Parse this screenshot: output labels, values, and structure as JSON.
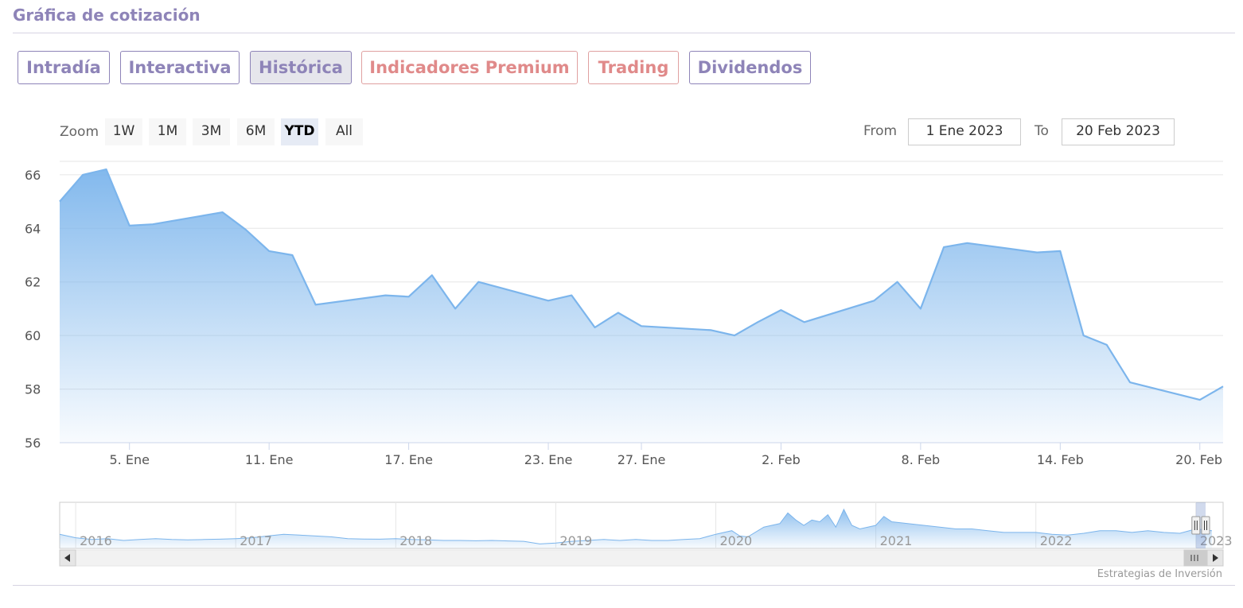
{
  "header": {
    "title": "Gráfica de cotización"
  },
  "tabs": [
    {
      "label": "Intradía",
      "active": false,
      "premium": false
    },
    {
      "label": "Interactiva",
      "active": false,
      "premium": false
    },
    {
      "label": "Histórica",
      "active": true,
      "premium": false
    },
    {
      "label": "Indicadores Premium",
      "active": false,
      "premium": true
    },
    {
      "label": "Trading",
      "active": false,
      "premium": true
    },
    {
      "label": "Dividendos",
      "active": false,
      "premium": false
    }
  ],
  "zoom": {
    "label": "Zoom",
    "buttons": [
      "1W",
      "1M",
      "3M",
      "6M",
      "YTD",
      "All"
    ],
    "selected": "YTD"
  },
  "range": {
    "from_label": "From",
    "from_value": "1 Ene 2023",
    "to_label": "To",
    "to_value": "20 Feb 2023"
  },
  "credits": "Estrategias de Inversión",
  "colors": {
    "accent": "#8e84b8",
    "premium": "#e08a8a",
    "line": "#7cb5ec"
  },
  "chart_data": {
    "type": "area",
    "title": "",
    "xlabel": "",
    "ylabel": "",
    "ylim": [
      56,
      66.5
    ],
    "y_ticks": [
      56,
      58,
      60,
      62,
      64,
      66
    ],
    "grid": true,
    "x_tick_labels": [
      {
        "date": "2023-01-05",
        "label": "5. Ene"
      },
      {
        "date": "2023-01-11",
        "label": "11. Ene"
      },
      {
        "date": "2023-01-17",
        "label": "17. Ene"
      },
      {
        "date": "2023-01-23",
        "label": "23. Ene"
      },
      {
        "date": "2023-01-27",
        "label": "27. Ene"
      },
      {
        "date": "2023-02-02",
        "label": "2. Feb"
      },
      {
        "date": "2023-02-08",
        "label": "8. Feb"
      },
      {
        "date": "2023-02-14",
        "label": "14. Feb"
      },
      {
        "date": "2023-02-20",
        "label": "20. Feb"
      }
    ],
    "series": [
      {
        "x": [
          "2023-01-02",
          "2023-01-03",
          "2023-01-04",
          "2023-01-05",
          "2023-01-06",
          "2023-01-09",
          "2023-01-10",
          "2023-01-11",
          "2023-01-12",
          "2023-01-13",
          "2023-01-16",
          "2023-01-17",
          "2023-01-18",
          "2023-01-19",
          "2023-01-20",
          "2023-01-23",
          "2023-01-24",
          "2023-01-25",
          "2023-01-26",
          "2023-01-27",
          "2023-01-30",
          "2023-01-31",
          "2023-02-01",
          "2023-02-02",
          "2023-02-03",
          "2023-02-06",
          "2023-02-07",
          "2023-02-08",
          "2023-02-09",
          "2023-02-10",
          "2023-02-13",
          "2023-02-14",
          "2023-02-15",
          "2023-02-16",
          "2023-02-17",
          "2023-02-20",
          "2023-02-21"
        ],
        "y": [
          65.0,
          66.0,
          66.2,
          64.1,
          64.15,
          64.6,
          63.95,
          63.15,
          63.0,
          61.15,
          61.5,
          61.45,
          62.25,
          61.0,
          62.0,
          61.3,
          61.5,
          60.3,
          60.85,
          60.35,
          60.2,
          60.0,
          60.5,
          60.95,
          60.5,
          61.3,
          62.0,
          61.0,
          63.3,
          63.45,
          63.1,
          63.15,
          60.0,
          59.65,
          58.25,
          57.6,
          58.1
        ]
      }
    ],
    "navigator": {
      "year_labels": [
        "2016",
        "2017",
        "2018",
        "2019",
        "2020",
        "2021",
        "2022",
        "2023"
      ],
      "x": [
        2015.9,
        2016.0,
        2016.1,
        2016.2,
        2016.3,
        2016.4,
        2016.5,
        2016.6,
        2016.7,
        2016.8,
        2016.9,
        2017.0,
        2017.1,
        2017.2,
        2017.3,
        2017.4,
        2017.5,
        2017.6,
        2017.7,
        2017.8,
        2017.9,
        2018.0,
        2018.1,
        2018.2,
        2018.3,
        2018.4,
        2018.5,
        2018.6,
        2018.7,
        2018.8,
        2018.9,
        2019.0,
        2019.1,
        2019.2,
        2019.3,
        2019.4,
        2019.5,
        2019.6,
        2019.7,
        2019.8,
        2019.9,
        2020.0,
        2020.1,
        2020.15,
        2020.2,
        2020.3,
        2020.4,
        2020.45,
        2020.5,
        2020.55,
        2020.6,
        2020.65,
        2020.7,
        2020.75,
        2020.8,
        2020.85,
        2020.9,
        2020.95,
        2021.0,
        2021.05,
        2021.1,
        2021.2,
        2021.3,
        2021.4,
        2021.5,
        2021.6,
        2021.7,
        2021.8,
        2021.9,
        2022.0,
        2022.1,
        2022.2,
        2022.3,
        2022.4,
        2022.5,
        2022.6,
        2022.7,
        2022.8,
        2022.9,
        2023.0,
        2023.1
      ],
      "y": [
        60,
        58,
        57,
        57.5,
        56.5,
        57,
        57.5,
        57,
        56.8,
        57,
        57.2,
        57.5,
        58,
        59,
        60,
        59.5,
        59,
        58.5,
        57.5,
        57.3,
        57.2,
        57.5,
        57,
        56.8,
        56.5,
        56.5,
        56.3,
        56.5,
        56.2,
        56,
        54.5,
        55,
        56,
        56.5,
        57,
        56.5,
        57,
        56.5,
        56.5,
        57,
        57.5,
        60,
        62,
        59,
        58.5,
        64,
        66,
        72,
        68,
        65,
        68,
        67,
        71,
        64,
        74,
        65,
        63,
        64,
        65,
        70,
        67,
        66,
        65,
        64,
        63,
        63,
        62,
        61,
        61,
        61,
        60,
        59.5,
        60.5,
        62,
        62,
        61,
        62,
        61,
        60.5,
        63,
        62
      ]
    }
  }
}
